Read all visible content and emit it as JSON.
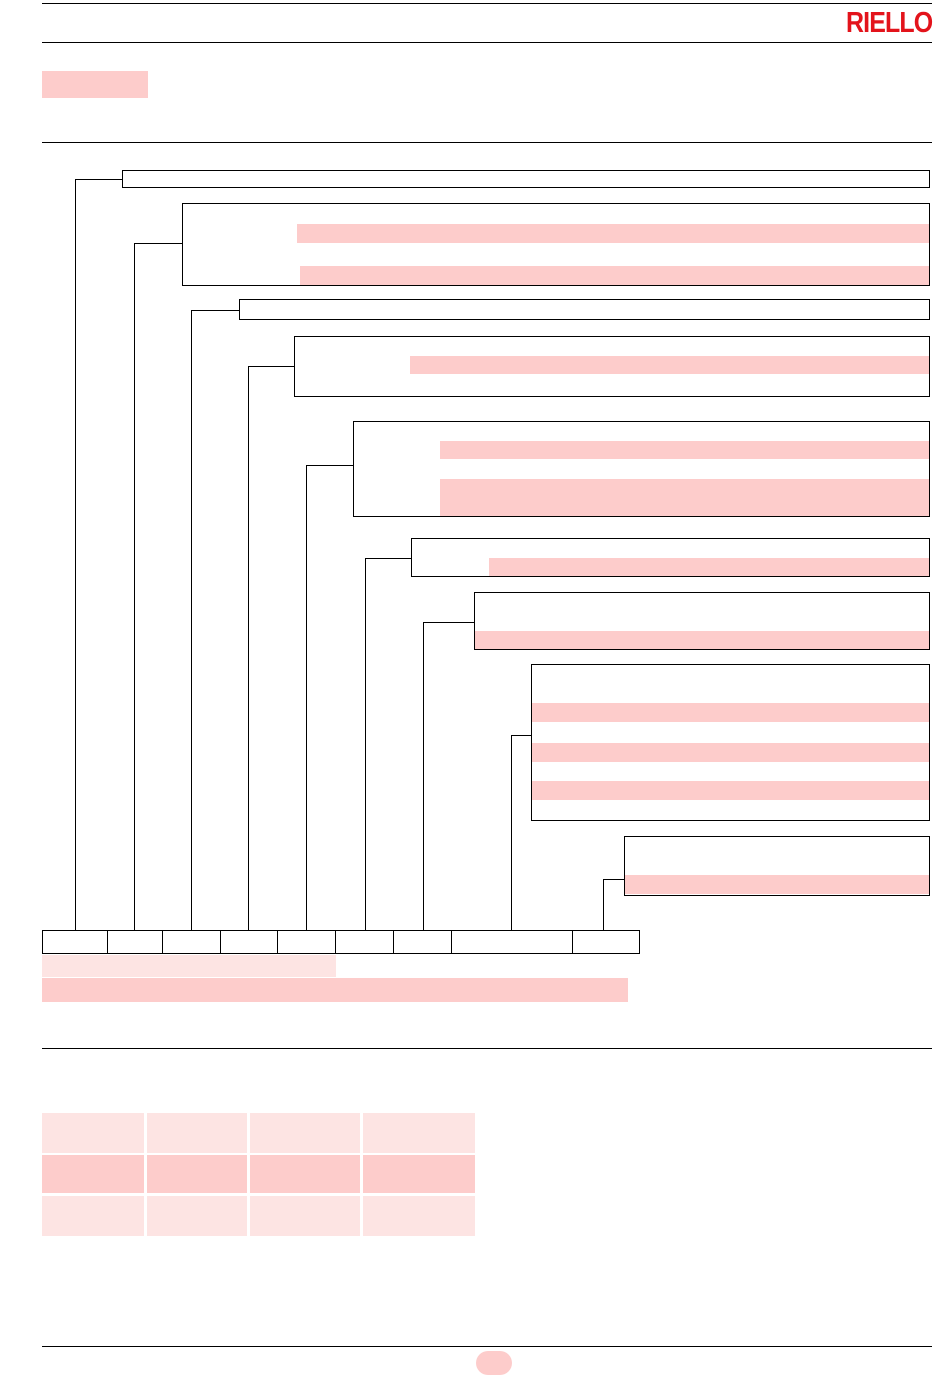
{
  "header": {
    "brand_name": "RIELLO",
    "brand_color": "#e3131b"
  },
  "colors": {
    "highlight": "#fdcccb",
    "highlight_light": "#fde4e3",
    "rule": "#000000"
  }
}
